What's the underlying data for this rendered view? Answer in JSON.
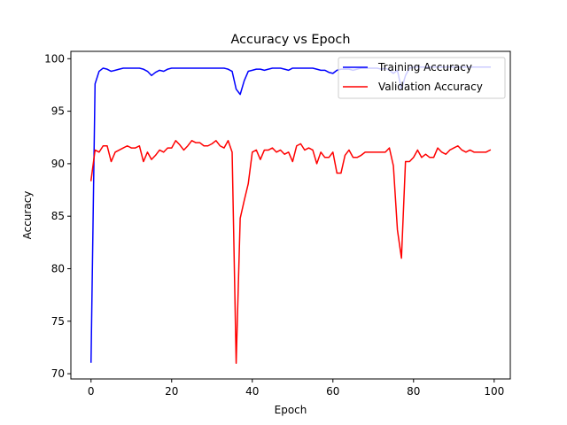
{
  "chart_data": {
    "type": "line",
    "title": "Accuracy vs Epoch",
    "xlabel": "Epoch",
    "ylabel": "Accuracy",
    "xlim": [
      -5,
      104
    ],
    "ylim": [
      69.5,
      100.7
    ],
    "xticks": [
      0,
      20,
      40,
      60,
      80,
      100
    ],
    "yticks": [
      70,
      75,
      80,
      85,
      90,
      95,
      100
    ],
    "grid": false,
    "legend_position": "top-right",
    "series": [
      {
        "name": "Training Accuracy",
        "color": "#0000ff",
        "x": [
          0,
          1,
          2,
          3,
          4,
          5,
          6,
          7,
          8,
          9,
          10,
          11,
          12,
          13,
          14,
          15,
          16,
          17,
          18,
          19,
          20,
          21,
          22,
          23,
          24,
          25,
          26,
          27,
          28,
          29,
          30,
          31,
          32,
          33,
          34,
          35,
          36,
          37,
          38,
          39,
          40,
          41,
          42,
          43,
          44,
          45,
          46,
          47,
          48,
          49,
          50,
          51,
          52,
          53,
          54,
          55,
          56,
          57,
          58,
          59,
          60,
          61,
          62,
          63,
          64,
          65,
          66,
          67,
          68,
          69,
          70,
          71,
          72,
          73,
          74,
          75,
          76,
          77,
          78,
          79,
          80,
          81,
          82,
          83,
          84,
          85,
          86,
          87,
          88,
          89,
          90,
          91,
          92,
          93,
          94,
          95,
          96,
          97,
          98,
          99
        ],
        "values": [
          71.1,
          97.6,
          98.8,
          99.1,
          99.0,
          98.8,
          98.9,
          99.0,
          99.1,
          99.1,
          99.1,
          99.1,
          99.1,
          99.0,
          98.8,
          98.4,
          98.7,
          98.9,
          98.8,
          99.0,
          99.1,
          99.1,
          99.1,
          99.1,
          99.1,
          99.1,
          99.1,
          99.1,
          99.1,
          99.1,
          99.1,
          99.1,
          99.1,
          99.1,
          99.0,
          98.8,
          97.1,
          96.6,
          97.9,
          98.8,
          98.9,
          99.0,
          99.0,
          98.9,
          99.0,
          99.1,
          99.1,
          99.1,
          99.0,
          98.9,
          99.1,
          99.1,
          99.1,
          99.1,
          99.1,
          99.1,
          99.0,
          98.9,
          98.9,
          98.7,
          98.6,
          98.9,
          99.0,
          99.0,
          99.0,
          98.9,
          99.0,
          99.1,
          99.1,
          99.1,
          99.1,
          99.1,
          99.0,
          99.1,
          98.9,
          98.6,
          98.9,
          97.1,
          98.4,
          99.1,
          99.2,
          99.2,
          99.2,
          99.2,
          99.2,
          99.2,
          99.2,
          99.2,
          99.2,
          99.2,
          99.2,
          99.2,
          99.2,
          99.2,
          99.2,
          99.2,
          99.2,
          99.2,
          99.2,
          99.2
        ]
      },
      {
        "name": "Validation Accuracy",
        "color": "#ff0000",
        "x": [
          0,
          1,
          2,
          3,
          4,
          5,
          6,
          7,
          8,
          9,
          10,
          11,
          12,
          13,
          14,
          15,
          16,
          17,
          18,
          19,
          20,
          21,
          22,
          23,
          24,
          25,
          26,
          27,
          28,
          29,
          30,
          31,
          32,
          33,
          34,
          35,
          36,
          37,
          38,
          39,
          40,
          41,
          42,
          43,
          44,
          45,
          46,
          47,
          48,
          49,
          50,
          51,
          52,
          53,
          54,
          55,
          56,
          57,
          58,
          59,
          60,
          61,
          62,
          63,
          64,
          65,
          66,
          67,
          68,
          69,
          70,
          71,
          72,
          73,
          74,
          75,
          76,
          77,
          78,
          79,
          80,
          81,
          82,
          83,
          84,
          85,
          86,
          87,
          88,
          89,
          90,
          91,
          92,
          93,
          94,
          95,
          96,
          97,
          98,
          99
        ],
        "values": [
          88.4,
          91.3,
          91.1,
          91.7,
          91.7,
          90.2,
          91.1,
          91.3,
          91.5,
          91.7,
          91.5,
          91.5,
          91.7,
          90.2,
          91.1,
          90.4,
          90.8,
          91.3,
          91.1,
          91.5,
          91.5,
          92.2,
          91.8,
          91.3,
          91.7,
          92.2,
          92.0,
          92.0,
          91.7,
          91.7,
          91.9,
          92.2,
          91.7,
          91.5,
          92.2,
          91.1,
          71.0,
          84.8,
          86.5,
          88.1,
          91.1,
          91.3,
          90.4,
          91.3,
          91.3,
          91.5,
          91.1,
          91.3,
          90.9,
          91.1,
          90.2,
          91.7,
          91.9,
          91.3,
          91.5,
          91.3,
          90.0,
          91.1,
          90.6,
          90.6,
          91.1,
          89.1,
          89.1,
          90.8,
          91.3,
          90.6,
          90.6,
          90.8,
          91.1,
          91.1,
          91.1,
          91.1,
          91.1,
          91.1,
          91.5,
          89.8,
          83.7,
          81.0,
          90.2,
          90.2,
          90.6,
          91.3,
          90.6,
          90.9,
          90.6,
          90.6,
          91.5,
          91.1,
          90.9,
          91.3,
          91.5,
          91.7,
          91.3,
          91.1,
          91.3,
          91.1,
          91.1,
          91.1,
          91.1,
          91.3
        ]
      }
    ]
  }
}
